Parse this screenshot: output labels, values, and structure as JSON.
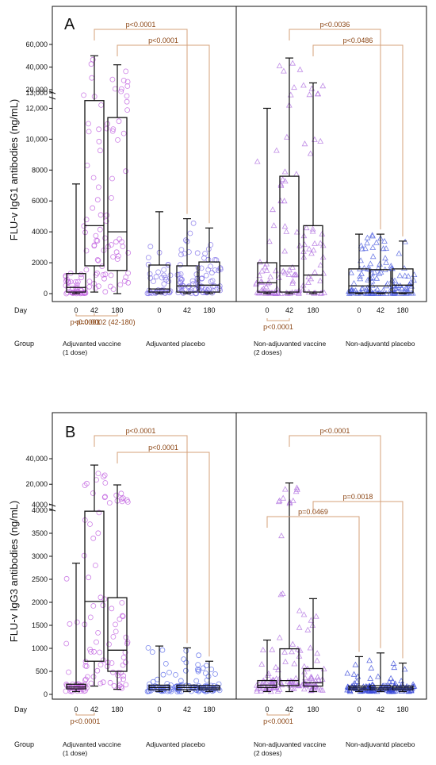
{
  "chart_data": [
    {
      "type": "box",
      "panel_label": "A",
      "ylabel": "FLU-v IgG1 antibodies (ng/mL)",
      "row_labels": {
        "day": "Day",
        "group": "Group"
      },
      "axis_segments": [
        {
          "range": [
            0,
            13000
          ],
          "ticks": [
            0,
            2000,
            4000,
            6000,
            8000,
            10000,
            12000,
            13000
          ],
          "tick_labels": [
            "0",
            "2000",
            "4000",
            "6000",
            "8000",
            "10,000",
            "12,000",
            "13,000"
          ]
        },
        {
          "range": [
            13000,
            60000
          ],
          "ticks": [
            20000,
            40000,
            60000
          ],
          "tick_labels": [
            "20,000",
            "40,000",
            "60,000"
          ]
        }
      ],
      "groups": [
        {
          "name": "Adjuvanted vaccine",
          "name2": "(1 dose)",
          "marker": "circle",
          "color": "#c060e0",
          "boxes": [
            {
              "day": "0",
              "whisker_low": 0,
              "q1": 100,
              "median": 400,
              "q3": 1300,
              "whisker_high": 7100
            },
            {
              "day": "42",
              "whisker_low": 100,
              "q1": 1800,
              "median": 4400,
              "q3": 12500,
              "whisker_high": 50000
            },
            {
              "day": "180",
              "whisker_low": 0,
              "q1": 1500,
              "median": 4000,
              "q3": 11400,
              "whisker_high": 42000
            }
          ]
        },
        {
          "name": "Adjuvanted placebo",
          "name2": "",
          "marker": "circle",
          "color": "#8070e8",
          "boxes": [
            {
              "day": "0",
              "whisker_low": 0,
              "q1": 100,
              "median": 300,
              "q3": 1850,
              "whisker_high": 5300
            },
            {
              "day": "42",
              "whisker_low": 0,
              "q1": 100,
              "median": 500,
              "q3": 1800,
              "whisker_high": 4850
            },
            {
              "day": "180",
              "whisker_low": 0,
              "q1": 100,
              "median": 550,
              "q3": 2050,
              "whisker_high": 4250
            }
          ]
        },
        {
          "name": "Non-adjuvanted vaccine",
          "name2": "(2 doses)",
          "marker": "triangle",
          "color": "#b070e0",
          "boxes": [
            {
              "day": "0",
              "whisker_low": 0,
              "q1": 100,
              "median": 700,
              "q3": 2000,
              "whisker_high": 12000
            },
            {
              "day": "42",
              "whisker_low": 0,
              "q1": 100,
              "median": 1800,
              "q3": 7600,
              "whisker_high": 48000
            },
            {
              "day": "180",
              "whisker_low": 0,
              "q1": 100,
              "median": 1200,
              "q3": 4400,
              "whisker_high": 26000
            }
          ]
        },
        {
          "name": "Non-adjuvantd placebo",
          "name2": "",
          "marker": "triangle",
          "color": "#5060e0",
          "boxes": [
            {
              "day": "0",
              "whisker_low": 0,
              "q1": 50,
              "median": 500,
              "q3": 1600,
              "whisker_high": 3850
            },
            {
              "day": "42",
              "whisker_low": 0,
              "q1": 50,
              "median": 500,
              "q3": 1550,
              "whisker_high": 3850
            },
            {
              "day": "180",
              "whisker_low": 0,
              "q1": 50,
              "median": 550,
              "q3": 1600,
              "whisker_high": 3400
            }
          ]
        }
      ],
      "comparisons_top": [
        {
          "label": "p<0.0001",
          "from": [
            0,
            1
          ],
          "to": [
            1,
            1
          ],
          "level": 0
        },
        {
          "label": "p<0.0001",
          "from": [
            0,
            2
          ],
          "to": [
            1,
            2
          ],
          "level": 1
        },
        {
          "label": "p<0.0036",
          "from": [
            2,
            1
          ],
          "to": [
            3,
            1
          ],
          "level": 0
        },
        {
          "label": "p<0.0486",
          "from": [
            2,
            2
          ],
          "to": [
            3,
            2
          ],
          "level": 1
        }
      ],
      "comparisons_bottom": [
        {
          "label": "p<0.0001",
          "from": [
            0,
            0
          ],
          "to": [
            0,
            1
          ],
          "level": 0
        },
        {
          "label": "p=0.0002 (42-180)",
          "from": [
            0,
            1
          ],
          "to": [
            0,
            2
          ],
          "level": 0
        },
        {
          "label": "p<0.0001",
          "from": [
            2,
            0
          ],
          "to": [
            2,
            1
          ],
          "level": 1
        }
      ]
    },
    {
      "type": "box",
      "panel_label": "B",
      "ylabel": "FLU-v IgG3 antibodies (ng/mL)",
      "row_labels": {
        "day": "Day",
        "group": "Group"
      },
      "axis_segments": [
        {
          "range": [
            0,
            4000
          ],
          "ticks": [
            0,
            500,
            1000,
            1500,
            2000,
            2500,
            3000,
            3500,
            4000
          ],
          "tick_labels": [
            "0",
            "500",
            "1000",
            "1500",
            "2000",
            "2500",
            "3000",
            "3500",
            "4000"
          ]
        },
        {
          "range": [
            4000,
            40000
          ],
          "ticks": [
            4000,
            20000,
            40000
          ],
          "tick_labels": [
            "4000",
            "20,000",
            "40,000"
          ]
        }
      ],
      "groups": [
        {
          "name": "Adjuvanted vaccine",
          "name2": "(1 dose)",
          "marker": "circle",
          "color": "#c060e0",
          "boxes": [
            {
              "day": "0",
              "whisker_low": 60,
              "q1": 120,
              "median": 160,
              "q3": 220,
              "whisker_high": 2850
            },
            {
              "day": "42",
              "whisker_low": 180,
              "q1": 720,
              "median": 2020,
              "q3": 3980,
              "whisker_high": 35000
            },
            {
              "day": "180",
              "whisker_low": 110,
              "q1": 500,
              "median": 960,
              "q3": 2100,
              "whisker_high": 19500
            }
          ]
        },
        {
          "name": "Adjuvanted placebo",
          "name2": "",
          "marker": "circle",
          "color": "#5a6ae8",
          "boxes": [
            {
              "day": "0",
              "whisker_low": 60,
              "q1": 100,
              "median": 150,
              "q3": 200,
              "whisker_high": 1050
            },
            {
              "day": "42",
              "whisker_low": 60,
              "q1": 100,
              "median": 150,
              "q3": 200,
              "whisker_high": 1010
            },
            {
              "day": "180",
              "whisker_low": 60,
              "q1": 100,
              "median": 140,
              "q3": 190,
              "whisker_high": 720
            }
          ]
        },
        {
          "name": "Non-adjuvanted vaccine",
          "name2": "(2 doses)",
          "marker": "triangle",
          "color": "#b070e0",
          "boxes": [
            {
              "day": "0",
              "whisker_low": 60,
              "q1": 150,
              "median": 200,
              "q3": 300,
              "whisker_high": 1180
            },
            {
              "day": "42",
              "whisker_low": 60,
              "q1": 190,
              "median": 300,
              "q3": 990,
              "whisker_high": 21000
            },
            {
              "day": "180",
              "whisker_low": 60,
              "q1": 180,
              "median": 250,
              "q3": 560,
              "whisker_high": 2080
            }
          ]
        },
        {
          "name": "Non-adjuvantd placebo",
          "name2": "",
          "marker": "triangle",
          "color": "#3848d8",
          "boxes": [
            {
              "day": "0",
              "whisker_low": 60,
              "q1": 100,
              "median": 140,
              "q3": 180,
              "whisker_high": 820
            },
            {
              "day": "42",
              "whisker_low": 60,
              "q1": 100,
              "median": 140,
              "q3": 190,
              "whisker_high": 900
            },
            {
              "day": "180",
              "whisker_low": 60,
              "q1": 100,
              "median": 140,
              "q3": 180,
              "whisker_high": 680
            }
          ]
        }
      ],
      "comparisons_top": [
        {
          "label": "p<0.0001",
          "from": [
            0,
            1
          ],
          "to": [
            1,
            1
          ],
          "level": 0
        },
        {
          "label": "p<0.0001",
          "from": [
            0,
            2
          ],
          "to": [
            1,
            2
          ],
          "level": 1
        },
        {
          "label": "p<0.0001",
          "from": [
            2,
            1
          ],
          "to": [
            3,
            1
          ],
          "level": 0
        },
        {
          "label": "p=0.0018",
          "from": [
            2,
            2
          ],
          "to": [
            3,
            2
          ],
          "level": 2
        },
        {
          "label": "p=0.0469",
          "from": [
            2,
            0
          ],
          "to": [
            3,
            0
          ],
          "level": 3
        }
      ],
      "comparisons_bottom": [
        {
          "label": "p<0.0001",
          "from": [
            0,
            0
          ],
          "to": [
            0,
            1
          ],
          "level": 0
        },
        {
          "label": "p<0.0001",
          "from": [
            2,
            0
          ],
          "to": [
            2,
            1
          ],
          "level": 0
        }
      ]
    }
  ],
  "colors": {
    "axis": "#111111",
    "box": "#111111",
    "bracket": "#d4a17a",
    "pvalue_text": "#8b4513"
  }
}
